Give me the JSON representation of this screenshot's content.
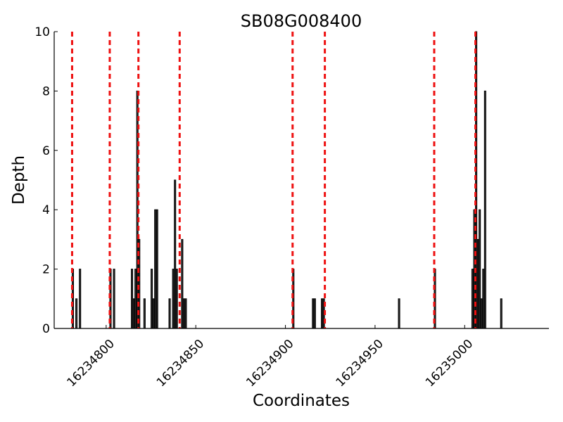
{
  "chart_data": {
    "type": "bar",
    "title": "SB08G008400",
    "xlabel": "Coordinates",
    "ylabel": "Depth",
    "xlim": [
      16234771,
      16235047
    ],
    "ylim": [
      0,
      10
    ],
    "x_ticks": [
      16234800,
      16234850,
      16234900,
      16234950,
      16235000
    ],
    "y_ticks": [
      0,
      2,
      4,
      6,
      8,
      10
    ],
    "grid": false,
    "bars": [
      {
        "x": 16234781,
        "y": 2
      },
      {
        "x": 16234783,
        "y": 1
      },
      {
        "x": 16234785,
        "y": 2
      },
      {
        "x": 16234802,
        "y": 2
      },
      {
        "x": 16234804,
        "y": 2
      },
      {
        "x": 16234814,
        "y": 2
      },
      {
        "x": 16234815,
        "y": 1
      },
      {
        "x": 16234816,
        "y": 2
      },
      {
        "x": 16234817,
        "y": 8
      },
      {
        "x": 16234818,
        "y": 3
      },
      {
        "x": 16234821,
        "y": 1
      },
      {
        "x": 16234825,
        "y": 2
      },
      {
        "x": 16234826,
        "y": 1
      },
      {
        "x": 16234827,
        "y": 4
      },
      {
        "x": 16234828,
        "y": 4
      },
      {
        "x": 16234835,
        "y": 1
      },
      {
        "x": 16234837,
        "y": 2
      },
      {
        "x": 16234838,
        "y": 5
      },
      {
        "x": 16234839,
        "y": 2
      },
      {
        "x": 16234842,
        "y": 3
      },
      {
        "x": 16234843,
        "y": 1
      },
      {
        "x": 16234844,
        "y": 1
      },
      {
        "x": 16234904,
        "y": 2
      },
      {
        "x": 16234915,
        "y": 1
      },
      {
        "x": 16234916,
        "y": 1
      },
      {
        "x": 16234920,
        "y": 1
      },
      {
        "x": 16234921,
        "y": 1
      },
      {
        "x": 16234963,
        "y": 1
      },
      {
        "x": 16234983,
        "y": 2
      },
      {
        "x": 16235004,
        "y": 2
      },
      {
        "x": 16235005,
        "y": 4
      },
      {
        "x": 16235006,
        "y": 10
      },
      {
        "x": 16235007,
        "y": 3
      },
      {
        "x": 16235008,
        "y": 4
      },
      {
        "x": 16235009,
        "y": 1
      },
      {
        "x": 16235010,
        "y": 2
      },
      {
        "x": 16235011,
        "y": 8
      },
      {
        "x": 16235020,
        "y": 1
      }
    ],
    "bar_width": 1,
    "vlines": [
      16234781,
      16234802,
      16234818,
      16234841,
      16234904,
      16234922,
      16234983,
      16235006
    ],
    "colors": {
      "bar_fill": "#333333",
      "bar_edge": "#000000",
      "vline": "#ee1111",
      "axis": "#000000"
    }
  }
}
